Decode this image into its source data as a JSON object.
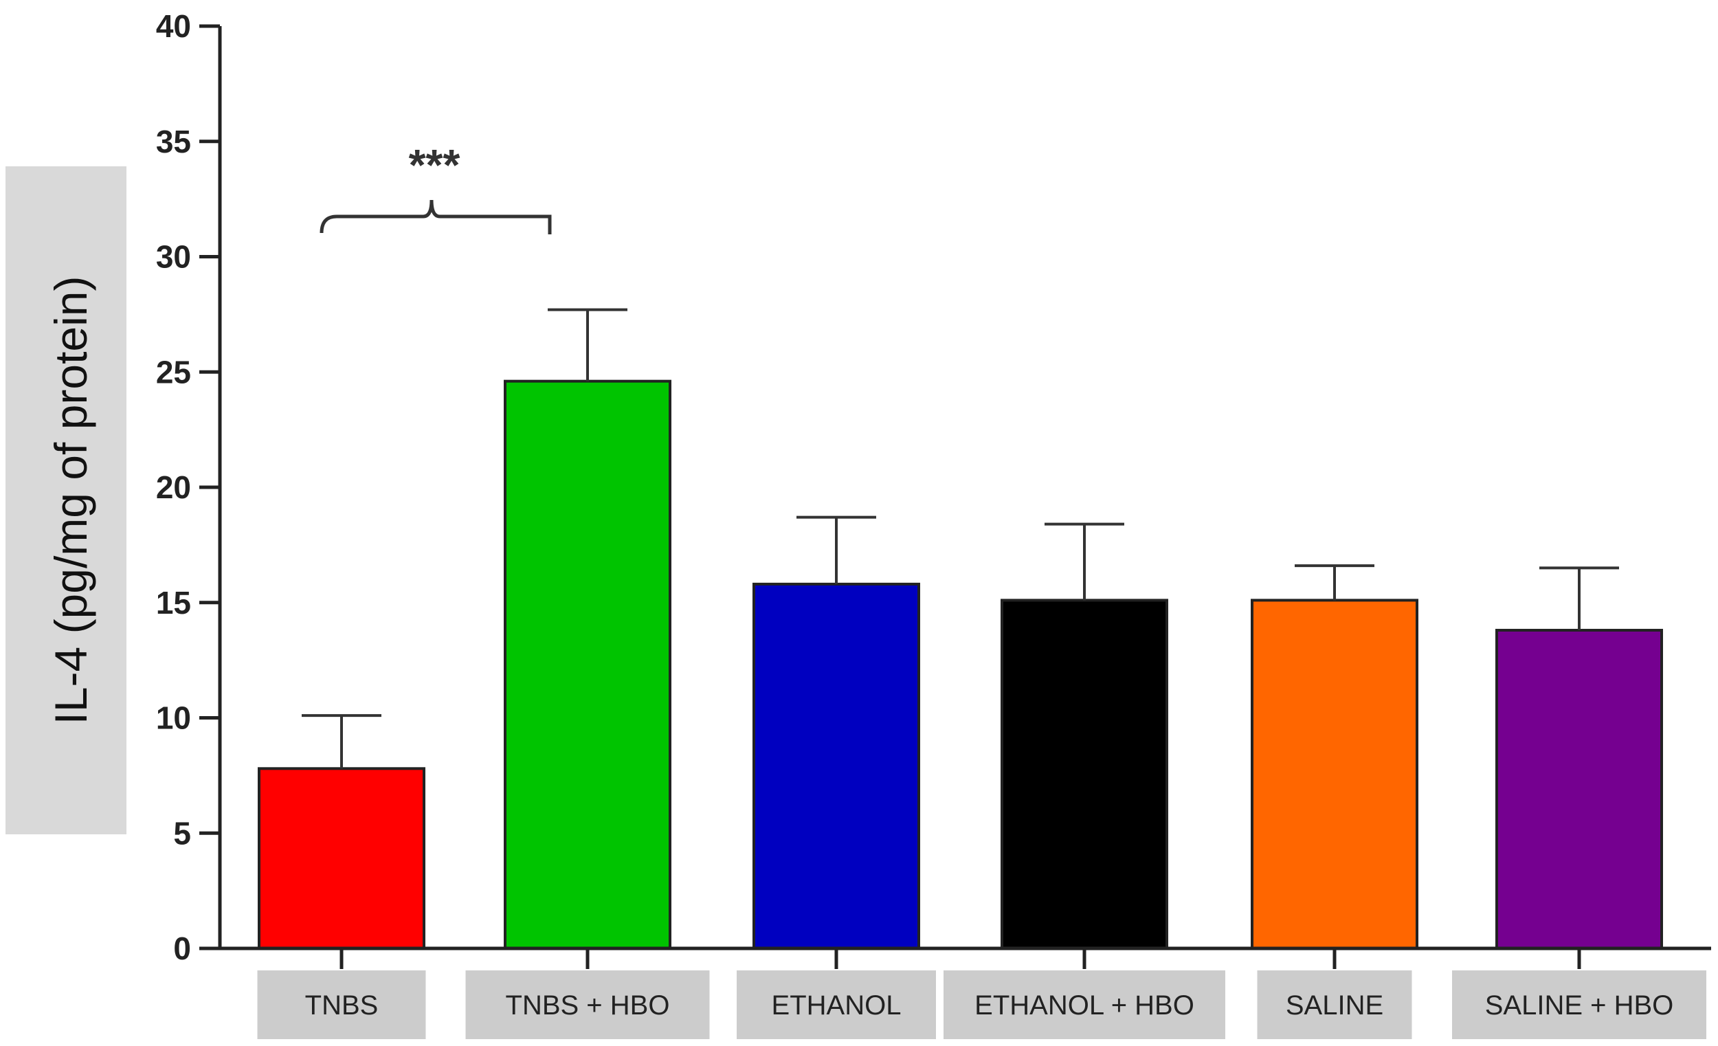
{
  "chart_data": {
    "type": "bar",
    "categories": [
      "TNBS",
      "TNBS + HBO",
      "ETHANOL",
      "ETHANOL  + HBO",
      "SALINE",
      "SALINE + HBO"
    ],
    "values": [
      7.8,
      24.6,
      15.8,
      15.1,
      15.1,
      13.8
    ],
    "errors": [
      2.3,
      3.1,
      2.9,
      3.3,
      1.5,
      2.7
    ],
    "colors": [
      "#ff0000",
      "#00c400",
      "#0000c0",
      "#000000",
      "#ff6600",
      "#750090"
    ],
    "title": "",
    "xlabel": "",
    "ylabel": "IL-4 (pg/mg of protein)",
    "ylim": [
      0,
      40
    ],
    "yticks": [
      0,
      5,
      10,
      15,
      20,
      25,
      30,
      35,
      40
    ],
    "grid": false,
    "annotations": [
      {
        "text": "***",
        "between": [
          "TNBS",
          "TNBS + HBO"
        ]
      }
    ]
  }
}
